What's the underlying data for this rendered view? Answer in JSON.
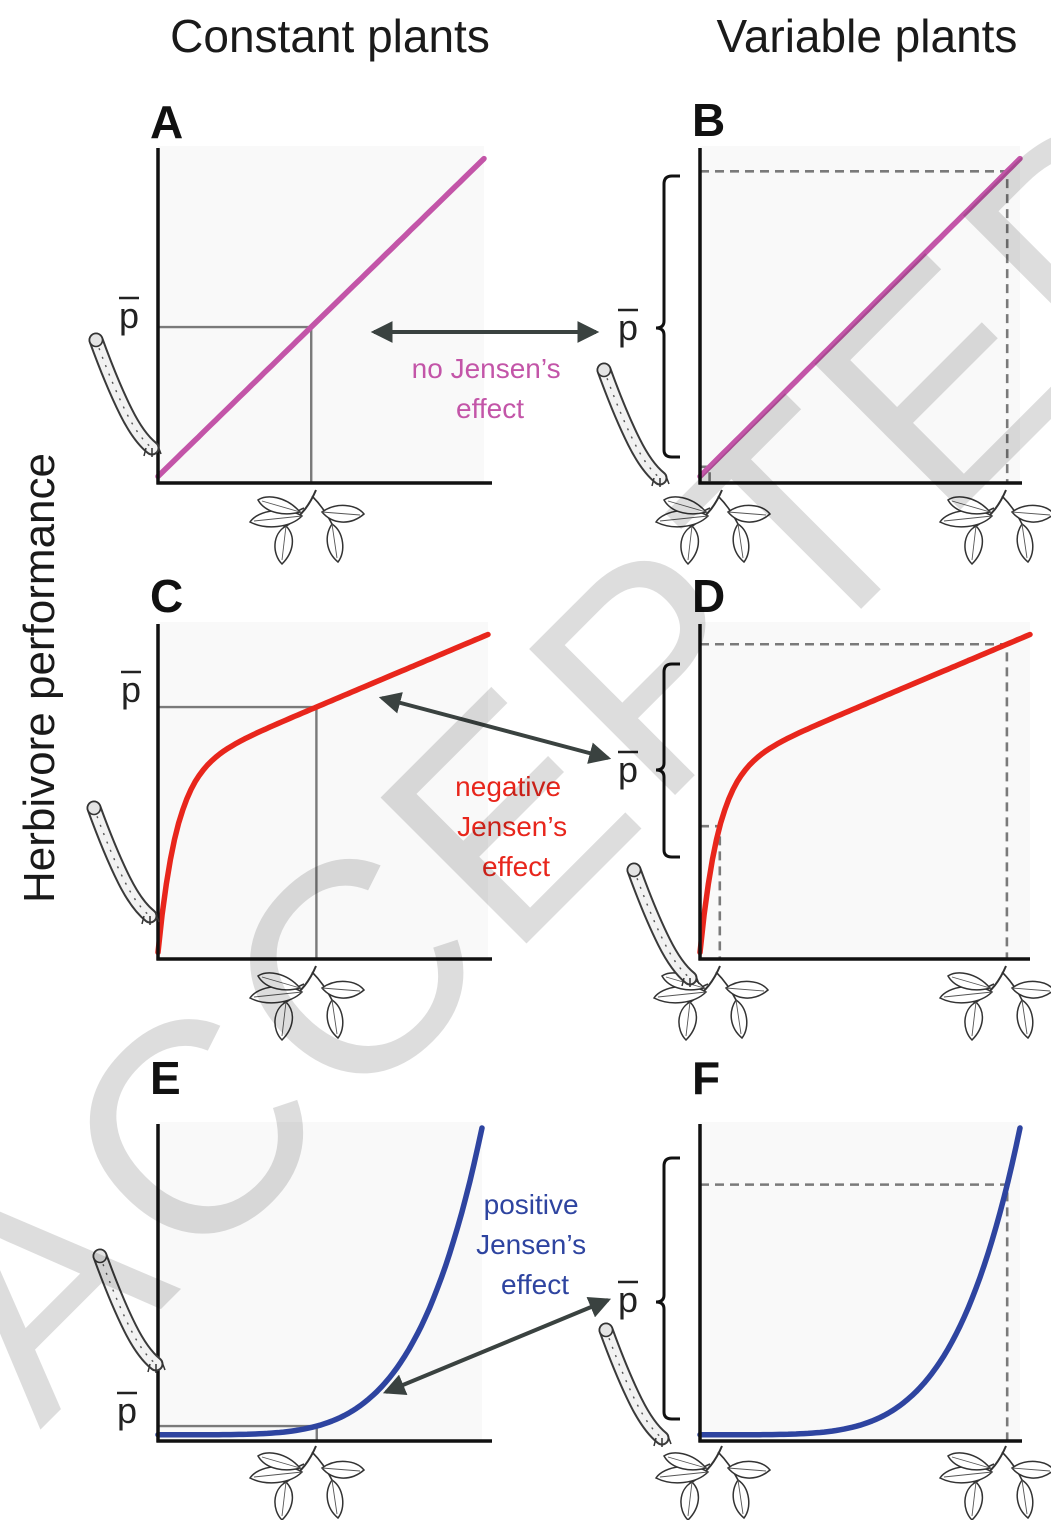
{
  "titles": {
    "left_column": "Constant plants",
    "right_column": "Variable plants",
    "y_axis": "Herbivore performance"
  },
  "mean_symbol": "p",
  "watermark": "ACCEPTED ARTICLE PREVIEW",
  "colors": {
    "linear": "#c355a8",
    "concave": "#e8261c",
    "convex": "#2e44a0",
    "axis": "#111111",
    "guide": "#7a7a7a",
    "arrow": "#3a4240",
    "panel_bg": "#f9f9f9"
  },
  "panels": [
    {
      "letter": "A",
      "column": "constant",
      "shape": "linear"
    },
    {
      "letter": "B",
      "column": "variable",
      "shape": "linear"
    },
    {
      "letter": "C",
      "column": "constant",
      "shape": "concave"
    },
    {
      "letter": "D",
      "column": "variable",
      "shape": "concave"
    },
    {
      "letter": "E",
      "column": "constant",
      "shape": "convex"
    },
    {
      "letter": "F",
      "column": "variable",
      "shape": "convex"
    }
  ],
  "annotations": [
    {
      "lines": [
        "no Jensen’s",
        "effect"
      ],
      "color": "#c355a8"
    },
    {
      "lines": [
        "negative",
        "Jensen’s",
        "effect"
      ],
      "color": "#e8261c"
    },
    {
      "lines": [
        "positive",
        "Jensen’s",
        "effect"
      ],
      "color": "#2e44a0"
    }
  ],
  "icons": {
    "plant": "leaf-sprig-icon",
    "herbivore": "caterpillar-icon"
  }
}
